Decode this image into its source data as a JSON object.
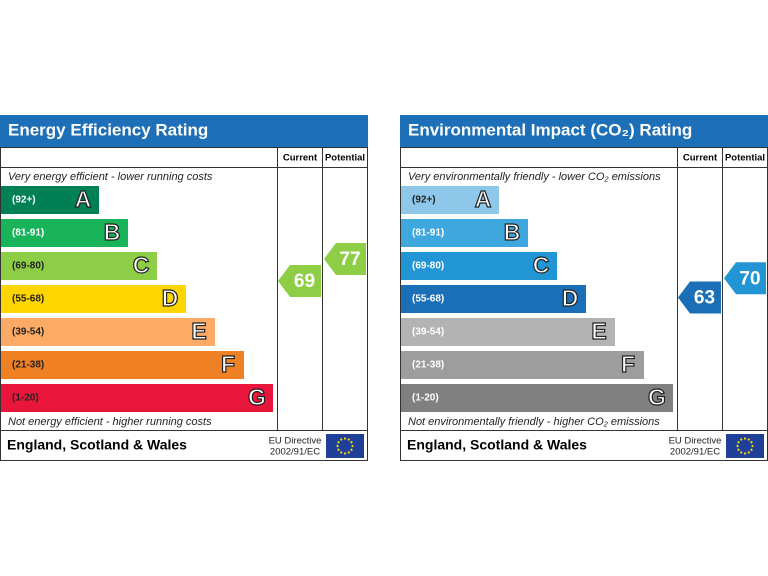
{
  "panels": [
    {
      "title": "Energy Efficiency Rating",
      "columns": [
        "Current",
        "Potential"
      ],
      "top_note": "Very energy efficient - lower running costs",
      "bands": [
        {
          "range": "(92+)",
          "letter": "A",
          "color": "#008054"
        },
        {
          "range": "(81-91)",
          "letter": "B",
          "color": "#19b459"
        },
        {
          "range": "(69-80)",
          "letter": "C",
          "color": "#8dce46"
        },
        {
          "range": "(55-68)",
          "letter": "D",
          "color": "#ffd500"
        },
        {
          "range": "(39-54)",
          "letter": "E",
          "color": "#fcaa65"
        },
        {
          "range": "(21-38)",
          "letter": "F",
          "color": "#ef8023"
        },
        {
          "range": "(1-20)",
          "letter": "G",
          "color": "#e9153b"
        }
      ],
      "bottom_note": "Not energy efficient - higher running costs",
      "current": 69,
      "current_color": "#8dce46",
      "potential": 77,
      "potential_color": "#8dce46",
      "region": "England, Scotland & Wales",
      "directive": [
        "EU Directive",
        "2002/91/EC"
      ]
    },
    {
      "title": "Environmental Impact (CO₂) Rating",
      "columns": [
        "Current",
        "Potential"
      ],
      "top_note": "Very environmentally friendly - lower CO₂ emissions",
      "bands": [
        {
          "range": "(92+)",
          "letter": "A",
          "color": "#8dc8ea"
        },
        {
          "range": "(81-91)",
          "letter": "B",
          "color": "#3ea8de"
        },
        {
          "range": "(69-80)",
          "letter": "C",
          "color": "#2296d4"
        },
        {
          "range": "(55-68)",
          "letter": "D",
          "color": "#1b6fb7"
        },
        {
          "range": "(39-54)",
          "letter": "E",
          "color": "#b3b3b3"
        },
        {
          "range": "(21-38)",
          "letter": "F",
          "color": "#9d9d9d"
        },
        {
          "range": "(1-20)",
          "letter": "G",
          "color": "#808080"
        }
      ],
      "bottom_note": "Not environmentally friendly - higher CO₂ emissions",
      "current": 63,
      "current_color": "#1b6fb7",
      "potential": 70,
      "potential_color": "#2296d4",
      "region": "England, Scotland & Wales",
      "directive": [
        "EU Directive",
        "2002/91/EC"
      ]
    }
  ]
}
